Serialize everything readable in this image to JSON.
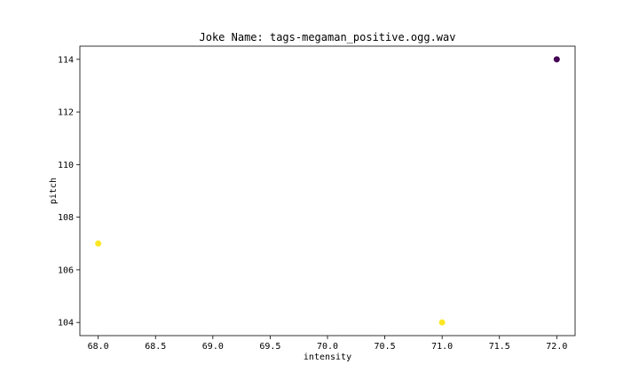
{
  "chart_data": {
    "type": "scatter",
    "title": "Joke Name: tags-megaman_positive.ogg.wav",
    "xlabel": "intensity",
    "ylabel": "pitch",
    "xlim": [
      67.84,
      72.16
    ],
    "ylim": [
      103.5,
      114.5
    ],
    "xticks": [
      68.0,
      68.5,
      69.0,
      69.5,
      70.0,
      70.5,
      71.0,
      71.5,
      72.0
    ],
    "xtick_labels": [
      "68.0",
      "68.5",
      "69.0",
      "69.5",
      "70.0",
      "70.5",
      "71.0",
      "71.5",
      "72.0"
    ],
    "yticks": [
      104,
      106,
      108,
      110,
      112,
      114
    ],
    "ytick_labels": [
      "104",
      "106",
      "108",
      "110",
      "112",
      "114"
    ],
    "grid": false,
    "points": [
      {
        "x": 68.0,
        "y": 107,
        "color": "#fde725"
      },
      {
        "x": 71.0,
        "y": 104,
        "color": "#fde725"
      },
      {
        "x": 72.0,
        "y": 114,
        "color": "#440154"
      }
    ]
  }
}
